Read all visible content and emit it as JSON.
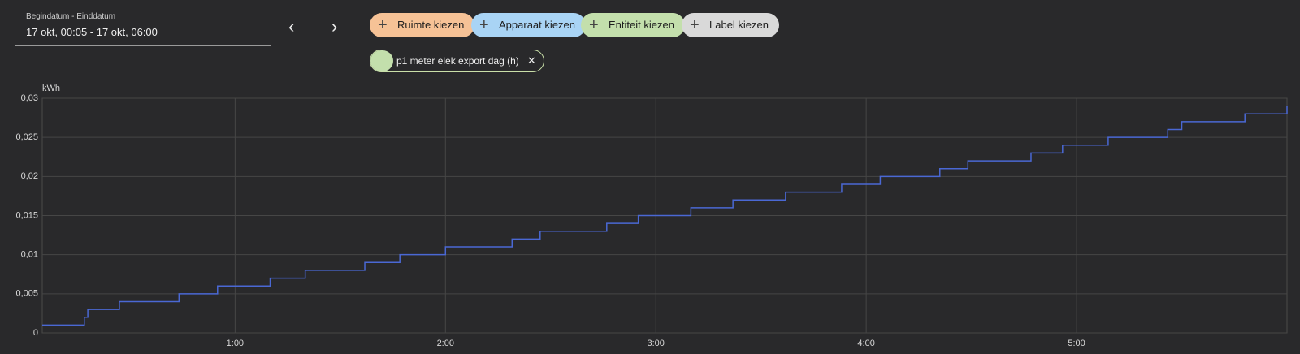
{
  "date_picker": {
    "label": "Begindatum - Einddatum",
    "value": "17 okt, 00:05 - 17 okt, 06:00"
  },
  "filters": [
    "Ruimte kiezen",
    "Apparaat kiezen",
    "Entiteit kiezen",
    "Label kiezen"
  ],
  "selected_entity": "p1 meter elek export dag (h)",
  "chart_data": {
    "type": "step",
    "y_label": "kWh",
    "xlim": [
      5,
      360
    ],
    "xticks": [
      {
        "value": 60,
        "label": "1:00"
      },
      {
        "value": 120,
        "label": "2:00"
      },
      {
        "value": 180,
        "label": "3:00"
      },
      {
        "value": 240,
        "label": "4:00"
      },
      {
        "value": 300,
        "label": "5:00"
      }
    ],
    "ylim": [
      0,
      0.03
    ],
    "yticks": [
      0,
      {
        "value": 0.005,
        "label": "0,005"
      },
      {
        "value": 0.01,
        "label": "0,01"
      },
      {
        "value": 0.015,
        "label": "0,015"
      },
      {
        "value": 0.02,
        "label": "0,02"
      },
      {
        "value": 0.025,
        "label": "0,025"
      },
      {
        "value": 0.03,
        "label": "0,03"
      }
    ],
    "grid": true,
    "series": [
      {
        "color": "#4a68d4",
        "x": [
          5,
          17,
          18,
          27,
          44,
          55,
          70,
          80,
          97,
          107,
          120,
          139,
          147,
          166,
          175,
          190,
          202,
          217,
          233,
          244,
          261,
          269,
          287,
          296,
          309,
          326,
          330,
          348,
          360
        ],
        "values": [
          0.001,
          0.002,
          0.003,
          0.004,
          0.005,
          0.006,
          0.007,
          0.008,
          0.009,
          0.01,
          0.011,
          0.012,
          0.013,
          0.014,
          0.015,
          0.016,
          0.017,
          0.018,
          0.019,
          0.02,
          0.021,
          0.022,
          0.023,
          0.024,
          0.025,
          0.026,
          0.027,
          0.028,
          0.029
        ]
      }
    ]
  }
}
